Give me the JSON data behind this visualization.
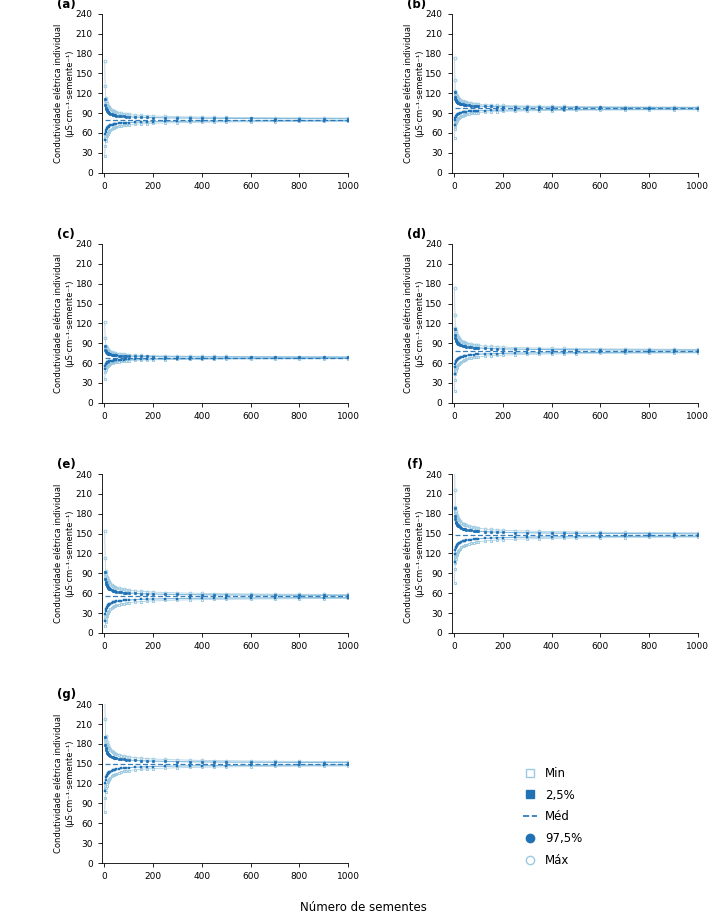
{
  "panels": [
    "a",
    "b",
    "c",
    "d",
    "e",
    "f",
    "g"
  ],
  "lot_params": [
    {
      "mean": 80,
      "cv": 0.28,
      "final_mean": 80,
      "spread_scale": 1.0
    },
    {
      "mean": 97,
      "cv": 0.22,
      "final_mean": 97,
      "spread_scale": 0.85
    },
    {
      "mean": 68,
      "cv": 0.22,
      "final_mean": 68,
      "spread_scale": 0.85
    },
    {
      "mean": 78,
      "cv": 0.3,
      "final_mean": 78,
      "spread_scale": 1.05
    },
    {
      "mean": 55,
      "cv": 0.38,
      "final_mean": 58,
      "spread_scale": 1.3
    },
    {
      "mean": 148,
      "cv": 0.22,
      "final_mean": 148,
      "spread_scale": 0.9
    },
    {
      "mean": 150,
      "cv": 0.22,
      "final_mean": 150,
      "spread_scale": 0.9
    }
  ],
  "ylim": [
    0,
    240
  ],
  "yticks": [
    0,
    30,
    60,
    90,
    120,
    150,
    180,
    210,
    240
  ],
  "xticks": [
    0,
    200,
    400,
    600,
    800,
    1000
  ],
  "color_main": "#2171b5",
  "color_light": "#6baed6",
  "color_lighter": "#9ecae1",
  "ylabel": "Condutividade elétrica individual\n(µS·cm⁻¹·semente⁻¹)",
  "xlabel": "Número de sementes",
  "legend_labels": [
    "Min",
    "2,5%",
    "Méd",
    "97,5%",
    "Máx"
  ]
}
